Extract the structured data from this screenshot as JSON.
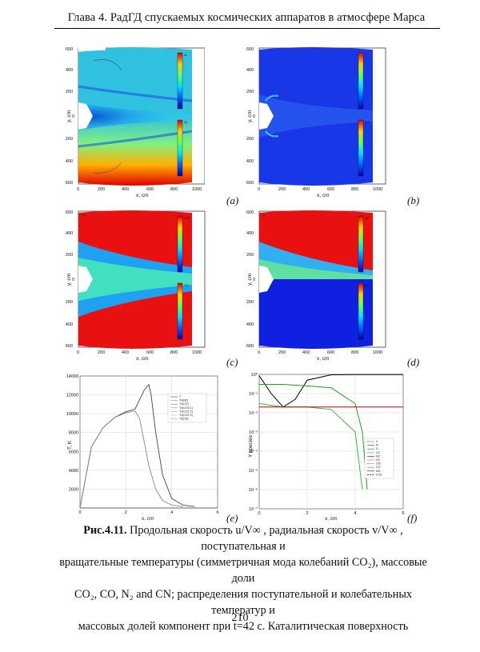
{
  "header": {
    "title": "Глава 4. РадГД спускаемых космических аппаратов в атмосфере Марса"
  },
  "panels": {
    "a": {
      "label": "(a)",
      "legend_top_title": "Vx",
      "legend_bottom_title": "Vy",
      "x_axis_label": "x, cm",
      "y_axis_label": "y, cm"
    },
    "b": {
      "label": "(b)",
      "legend_top_title": "T",
      "legend_bottom_title": "Tv3",
      "x_axis_label": "x, cm",
      "y_axis_label": "y, cm"
    },
    "c": {
      "label": "(c)",
      "legend_top_title": "CO2",
      "legend_bottom_title": "CO",
      "corner_mark": "37",
      "x_axis_label": "x, cm",
      "y_axis_label": "y, cm"
    },
    "d": {
      "label": "(d)",
      "legend_top_title": "N2",
      "legend_bottom_title": "CN",
      "corner_mark": "37",
      "x_axis_label": "x, cm",
      "y_axis_label": "y, cm"
    },
    "e": {
      "label": "(e)",
      "x_axis_label": "x, cm",
      "y_axis_label": "T, K",
      "legend": [
        "T",
        "Tv(N2)",
        "Tv(CO)",
        "Tv(CO2 1)",
        "Tv(CO2 2)",
        "Tv(CO2 3)",
        "Tv(CN)"
      ]
    },
    "f": {
      "label": "(f)",
      "x_axis_label": "x, cm",
      "y_axis_label": "Y species",
      "legend": [
        "C",
        "N",
        "O",
        "C2",
        "N2",
        "O2",
        "CN",
        "CO",
        "NO",
        "CO2"
      ]
    }
  },
  "caption": {
    "fig_label": "Рис.4.11.",
    "line1": " Продольная скорость u/V∞ , радиальная скорость v/V∞ , поступательная и",
    "line2": "вращательные температуры (симметричная мода колебаний CO₂), массовые доли",
    "line3": "CO₂, CO,  N₂ and CN; распределения поступательной и колебательных температур и",
    "line4": "массовых долей компонент при t=42 с. Каталитическая поверхность"
  },
  "page_number": "210",
  "chart_data": [
    {
      "type": "line",
      "panel": "e",
      "xlabel": "x, cm",
      "ylabel": "T, K",
      "xlim": [
        0,
        6
      ],
      "ylim": [
        0,
        14000
      ],
      "x_ticks": [
        0,
        2,
        4,
        6
      ],
      "y_ticks": [
        2000,
        4000,
        6000,
        8000,
        10000,
        12000,
        14000
      ],
      "series": [
        {
          "name": "T",
          "x": [
            0,
            0.5,
            1.0,
            1.5,
            2.0,
            2.4,
            2.8,
            3.0,
            3.1,
            3.3,
            3.6,
            4.0,
            4.5,
            5.0
          ],
          "values": [
            0,
            6500,
            8500,
            9600,
            10200,
            10500,
            12500,
            13100,
            12000,
            8000,
            3500,
            1000,
            300,
            150
          ]
        },
        {
          "name": "Tv(N2)",
          "x": [
            0,
            0.5,
            1.0,
            1.5,
            2.0,
            2.4,
            2.6,
            2.8,
            3.0,
            3.3,
            3.6,
            4.0,
            4.5
          ],
          "values": [
            0,
            6500,
            8500,
            9600,
            10100,
            10300,
            9500,
            7000,
            4500,
            2000,
            800,
            300,
            150
          ]
        }
      ]
    },
    {
      "type": "line",
      "panel": "f",
      "xlabel": "x, cm",
      "ylabel": "Y species",
      "xlim": [
        0,
        6
      ],
      "y_scale": "log",
      "ylim": [
        1e-07,
        1
      ],
      "x_ticks": [
        0,
        2,
        4,
        6
      ],
      "y_ticks": [
        1e-07,
        1e-06,
        1e-05,
        0.0001,
        0.001,
        0.01,
        0.1,
        1
      ],
      "series": [
        {
          "name": "CO2",
          "x": [
            0,
            0.5,
            1.0,
            1.5,
            2.0,
            3.0,
            4.0,
            5.0,
            6.0
          ],
          "values": [
            0.85,
            0.1,
            0.02,
            0.05,
            0.5,
            0.95,
            0.97,
            0.97,
            0.97
          ]
        },
        {
          "name": "CO",
          "x": [
            0,
            1.0,
            2.0,
            3.0,
            4.0,
            4.3,
            4.5
          ],
          "values": [
            0.3,
            0.3,
            0.25,
            0.2,
            0.03,
            0.001,
            1e-06
          ]
        },
        {
          "name": "O",
          "x": [
            0,
            1.0,
            2.0,
            3.0,
            4.0,
            4.3
          ],
          "values": [
            0.03,
            0.02,
            0.02,
            0.015,
            0.001,
            1e-06
          ]
        },
        {
          "name": "N2",
          "x": [
            0,
            6.0
          ],
          "values": [
            0.02,
            0.02
          ]
        }
      ]
    }
  ]
}
